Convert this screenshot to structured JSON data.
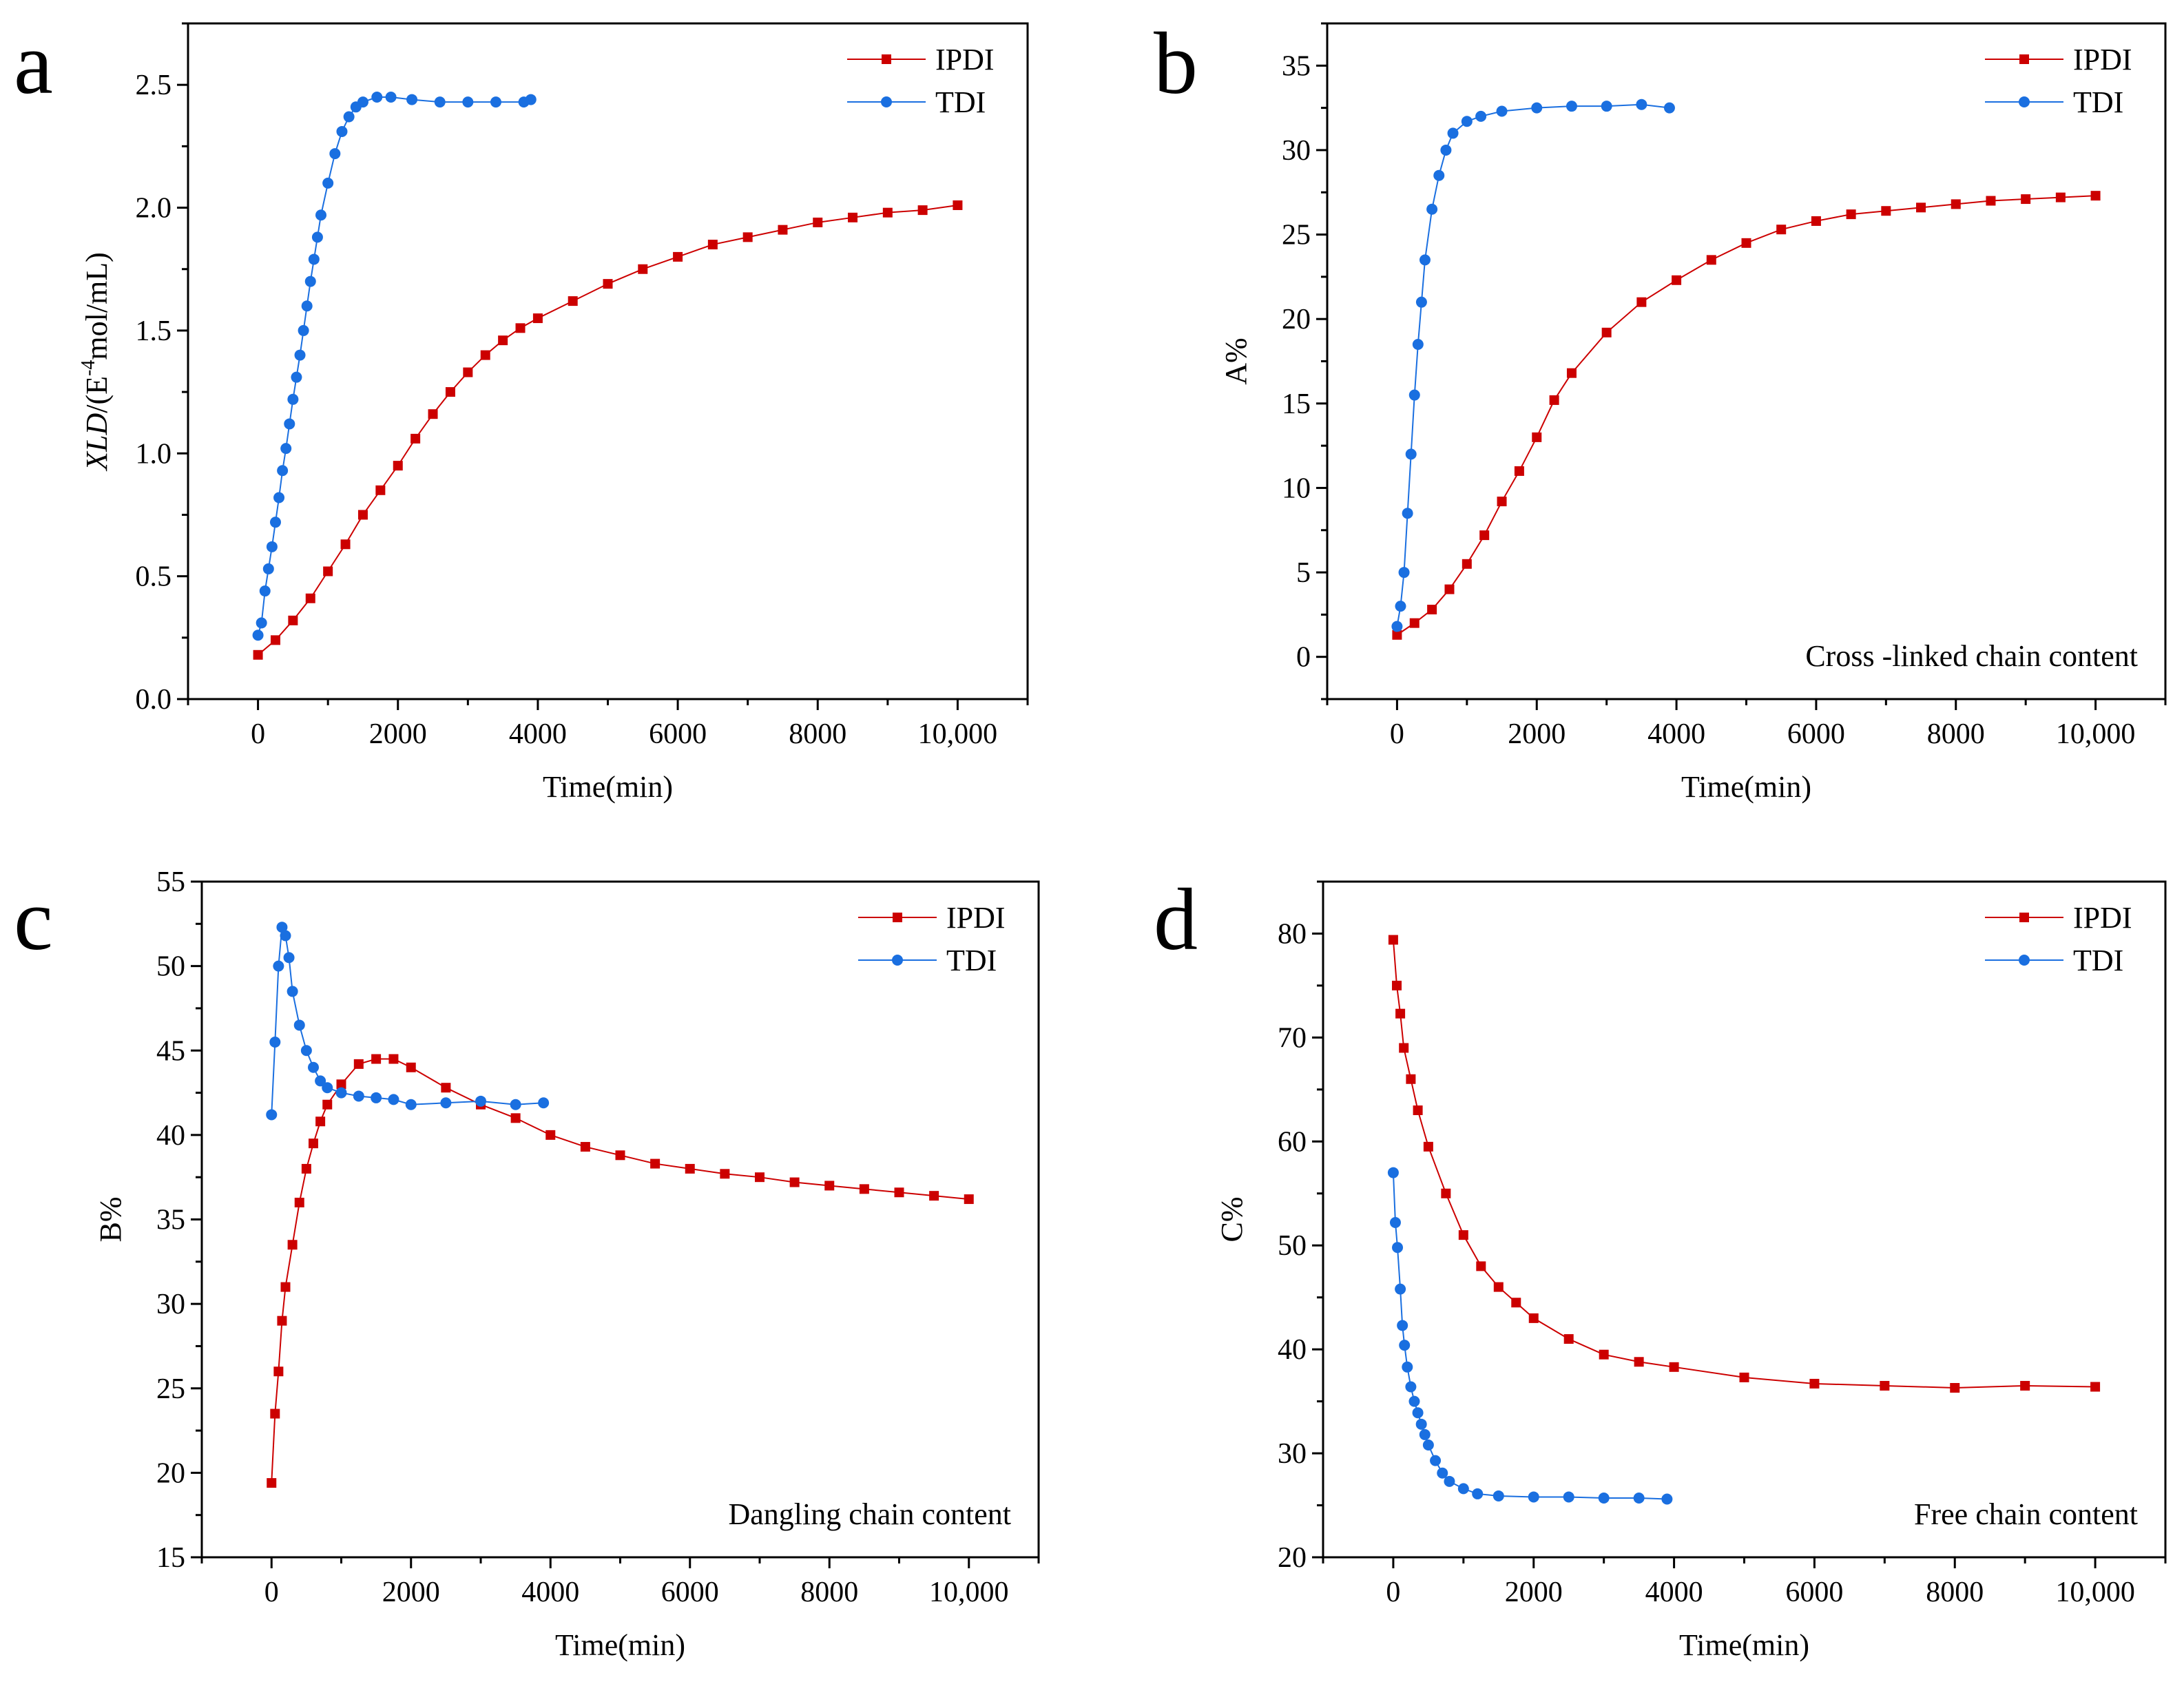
{
  "colors": {
    "IPDI": "#cc0000",
    "TDI": "#1a6fe0",
    "axis": "#000000"
  },
  "chart_data": [
    {
      "panel_label": "a",
      "type": "line",
      "ylabel_parts": [
        "XLD",
        "/(E",
        "-4",
        "mol/mL)"
      ],
      "xlabel": "Time(min)",
      "xlim": [
        -1000,
        11000
      ],
      "ylim": [
        0,
        2.75
      ],
      "xticks": [
        0,
        2000,
        4000,
        6000,
        8000,
        10000
      ],
      "xtick_labels": [
        "0",
        "2000",
        "4000",
        "6000",
        "8000",
        "10,000"
      ],
      "yticks": [
        0,
        0.5,
        1.0,
        1.5,
        2.0,
        2.5
      ],
      "ytick_labels": [
        "0.0",
        "0.5",
        "1.0",
        "1.5",
        "2.0",
        "2.5"
      ],
      "legend": "top-right",
      "annotation": "",
      "series": [
        {
          "name": "IPDI",
          "marker": "square",
          "x": [
            0,
            250,
            500,
            750,
            1000,
            1250,
            1500,
            1750,
            2000,
            2250,
            2500,
            2750,
            3000,
            3250,
            3500,
            3750,
            4000,
            4500,
            5000,
            5500,
            6000,
            6500,
            7000,
            7500,
            8000,
            8500,
            9000,
            9500,
            10000
          ],
          "y": [
            0.18,
            0.24,
            0.32,
            0.41,
            0.52,
            0.63,
            0.75,
            0.85,
            0.95,
            1.06,
            1.16,
            1.25,
            1.33,
            1.4,
            1.46,
            1.51,
            1.55,
            1.62,
            1.69,
            1.75,
            1.8,
            1.85,
            1.88,
            1.91,
            1.94,
            1.96,
            1.98,
            1.99,
            2.01
          ]
        },
        {
          "name": "TDI",
          "marker": "circle",
          "x": [
            0,
            50,
            100,
            150,
            200,
            250,
            300,
            350,
            400,
            450,
            500,
            550,
            600,
            650,
            700,
            750,
            800,
            850,
            900,
            1000,
            1100,
            1200,
            1300,
            1400,
            1500,
            1700,
            1900,
            2200,
            2600,
            3000,
            3400,
            3800,
            3900
          ],
          "y": [
            0.26,
            0.31,
            0.44,
            0.53,
            0.62,
            0.72,
            0.82,
            0.93,
            1.02,
            1.12,
            1.22,
            1.31,
            1.4,
            1.5,
            1.6,
            1.7,
            1.79,
            1.88,
            1.97,
            2.1,
            2.22,
            2.31,
            2.37,
            2.41,
            2.43,
            2.45,
            2.45,
            2.44,
            2.43,
            2.43,
            2.43,
            2.43,
            2.44
          ]
        }
      ]
    },
    {
      "panel_label": "b",
      "type": "line",
      "ylabel_parts": [
        "",
        "A%",
        "",
        ""
      ],
      "xlabel": "Time(min)",
      "xlim": [
        -1000,
        11000
      ],
      "ylim": [
        -2.5,
        37.5
      ],
      "xticks": [
        0,
        2000,
        4000,
        6000,
        8000,
        10000
      ],
      "xtick_labels": [
        "0",
        "2000",
        "4000",
        "6000",
        "8000",
        "10,000"
      ],
      "yticks": [
        0,
        5,
        10,
        15,
        20,
        25,
        30,
        35
      ],
      "ytick_labels": [
        "0",
        "5",
        "10",
        "15",
        "20",
        "25",
        "30",
        "35"
      ],
      "legend": "top-right",
      "annotation": "Cross -linked chain content",
      "series": [
        {
          "name": "IPDI",
          "marker": "square",
          "x": [
            0,
            250,
            500,
            750,
            1000,
            1250,
            1500,
            1750,
            2000,
            2250,
            2500,
            3000,
            3500,
            4000,
            4500,
            5000,
            5500,
            6000,
            6500,
            7000,
            7500,
            8000,
            8500,
            9000,
            9500,
            10000
          ],
          "y": [
            1.3,
            2,
            2.8,
            4,
            5.5,
            7.2,
            9.2,
            11,
            13,
            15.2,
            16.8,
            19.2,
            21,
            22.3,
            23.5,
            24.5,
            25.3,
            25.8,
            26.2,
            26.4,
            26.6,
            26.8,
            27,
            27.1,
            27.2,
            27.3
          ]
        },
        {
          "name": "TDI",
          "marker": "circle",
          "x": [
            0,
            50,
            100,
            150,
            200,
            250,
            300,
            350,
            400,
            500,
            600,
            700,
            800,
            1000,
            1200,
            1500,
            2000,
            2500,
            3000,
            3500,
            3900
          ],
          "y": [
            1.8,
            3,
            5,
            8.5,
            12,
            15.5,
            18.5,
            21,
            23.5,
            26.5,
            28.5,
            30,
            31,
            31.7,
            32,
            32.3,
            32.5,
            32.6,
            32.6,
            32.7,
            32.5
          ]
        }
      ]
    },
    {
      "panel_label": "c",
      "type": "line",
      "ylabel_parts": [
        "",
        "B%",
        "",
        ""
      ],
      "xlabel": "Time(min)",
      "xlim": [
        -1000,
        11000
      ],
      "ylim": [
        15,
        55
      ],
      "xticks": [
        0,
        2000,
        4000,
        6000,
        8000,
        10000
      ],
      "xtick_labels": [
        "0",
        "2000",
        "4000",
        "6000",
        "8000",
        "10,000"
      ],
      "yticks": [
        15,
        20,
        25,
        30,
        35,
        40,
        45,
        50,
        55
      ],
      "ytick_labels": [
        "15",
        "20",
        "25",
        "30",
        "35",
        "40",
        "45",
        "50",
        "55"
      ],
      "legend": "top-right",
      "annotation": "Dangling chain content",
      "series": [
        {
          "name": "IPDI",
          "marker": "square",
          "x": [
            0,
            50,
            100,
            150,
            200,
            300,
            400,
            500,
            600,
            700,
            800,
            1000,
            1250,
            1500,
            1750,
            2000,
            2500,
            3000,
            3500,
            4000,
            4500,
            5000,
            5500,
            6000,
            6500,
            7000,
            7500,
            8000,
            8500,
            9000,
            9500,
            10000
          ],
          "y": [
            19.4,
            23.5,
            26,
            29,
            31,
            33.5,
            36,
            38,
            39.5,
            40.8,
            41.8,
            43,
            44.2,
            44.5,
            44.5,
            44,
            42.8,
            41.8,
            41,
            40,
            39.3,
            38.8,
            38.3,
            38,
            37.7,
            37.5,
            37.2,
            37,
            36.8,
            36.6,
            36.4,
            36.2
          ]
        },
        {
          "name": "TDI",
          "marker": "circle",
          "x": [
            0,
            50,
            100,
            150,
            200,
            250,
            300,
            400,
            500,
            600,
            700,
            800,
            1000,
            1250,
            1500,
            1750,
            2000,
            2500,
            3000,
            3500,
            3900
          ],
          "y": [
            41.2,
            45.5,
            50,
            52.3,
            51.8,
            50.5,
            48.5,
            46.5,
            45,
            44,
            43.2,
            42.8,
            42.5,
            42.3,
            42.2,
            42.1,
            41.8,
            41.9,
            42,
            41.8,
            41.9
          ]
        }
      ]
    },
    {
      "panel_label": "d",
      "type": "line",
      "ylabel_parts": [
        "",
        "C%",
        "",
        ""
      ],
      "xlabel": "Time(min)",
      "xlim": [
        -1000,
        11000
      ],
      "ylim": [
        20,
        85
      ],
      "xticks": [
        0,
        2000,
        4000,
        6000,
        8000,
        10000
      ],
      "xtick_labels": [
        "0",
        "2000",
        "4000",
        "6000",
        "8000",
        "10,000"
      ],
      "yticks": [
        20,
        30,
        40,
        50,
        60,
        70,
        80
      ],
      "ytick_labels": [
        "20",
        "30",
        "40",
        "50",
        "60",
        "70",
        "80"
      ],
      "legend": "top-right",
      "annotation": "Free chain content",
      "series": [
        {
          "name": "IPDI",
          "marker": "square",
          "x": [
            0,
            50,
            100,
            150,
            250,
            350,
            500,
            750,
            1000,
            1250,
            1500,
            1750,
            2000,
            2500,
            3000,
            3500,
            4000,
            5000,
            6000,
            7000,
            8000,
            9000,
            10000
          ],
          "y": [
            79.4,
            75,
            72.3,
            69,
            66,
            63,
            59.5,
            55,
            51,
            48,
            46,
            44.5,
            43,
            41,
            39.5,
            38.8,
            38.3,
            37.3,
            36.7,
            36.5,
            36.3,
            36.5,
            36.4
          ]
        },
        {
          "name": "TDI",
          "marker": "circle",
          "x": [
            0,
            30,
            60,
            100,
            130,
            160,
            200,
            250,
            300,
            350,
            400,
            450,
            500,
            600,
            700,
            800,
            1000,
            1200,
            1500,
            2000,
            2500,
            3000,
            3500,
            3900
          ],
          "y": [
            57,
            52.2,
            49.8,
            45.8,
            42.3,
            40.4,
            38.3,
            36.4,
            35,
            33.9,
            32.8,
            31.8,
            30.8,
            29.3,
            28.1,
            27.3,
            26.6,
            26.1,
            25.9,
            25.8,
            25.8,
            25.7,
            25.7,
            25.6
          ]
        }
      ]
    }
  ]
}
